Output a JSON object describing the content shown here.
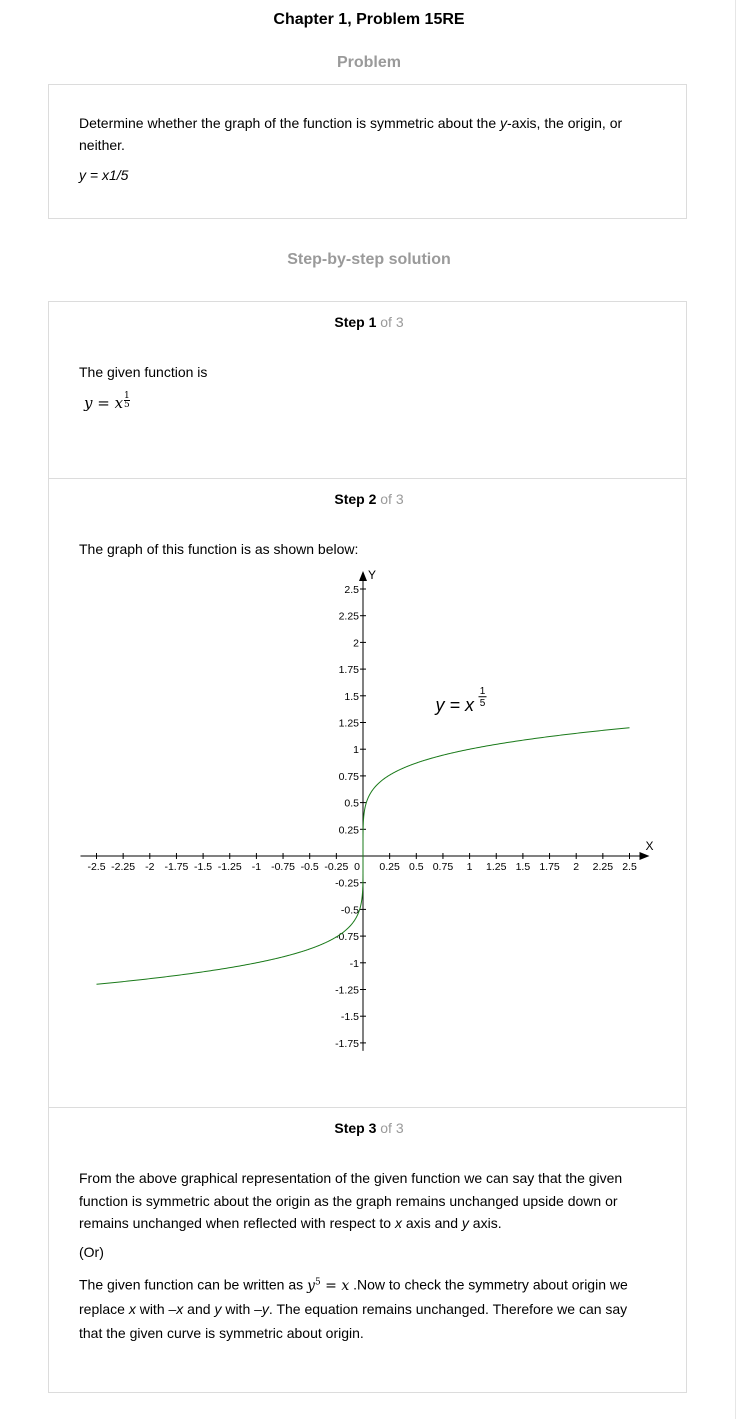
{
  "title": "Chapter 1, Problem 15RE",
  "problem_heading": "Problem",
  "problem": {
    "text_before_y": "Determine whether the graph of the function is symmetric about the ",
    "y_italic": "y",
    "text_after_y": "-axis, the origin, or neither.",
    "equation": "y = x1/5"
  },
  "solution_heading": "Step-by-step solution",
  "steps": [
    {
      "label": "Step 1",
      "of": "of 3"
    },
    {
      "label": "Step 2",
      "of": "of 3"
    },
    {
      "label": "Step 3",
      "of": "of 3"
    }
  ],
  "step1": {
    "text": "The given function is",
    "eq_lhs": "y = x",
    "exp_num": "1",
    "exp_den": "5"
  },
  "step2": {
    "text": "The graph of this function is as shown below:"
  },
  "step3": {
    "p1_a": "From the above graphical representation of the given function we can say that the given function is symmetric about the origin as the graph remains unchanged upside down or remains unchanged when reflected with respect to ",
    "p1_x": "x",
    "p1_b": " axis and ",
    "p1_y": "y",
    "p1_c": " axis.",
    "or": "(Or)",
    "p2_a": "The given function can be written as ",
    "p2_eq_base": "y",
    "p2_eq_exp": "5",
    "p2_eq_rest": " = x",
    "p2_b": " .Now to check the symmetry about origin we replace ",
    "p2_x1": "x",
    "p2_c": " with ",
    "p2_x2": "–x",
    "p2_d": " and ",
    "p2_y1": "y",
    "p2_e": " with ",
    "p2_y2": "–y",
    "p2_f": ". The equation remains unchanged. Therefore we can say that the given curve is symmetric about origin."
  },
  "chart_data": {
    "type": "line",
    "xlabel": "X",
    "ylabel": "Y",
    "xlim": [
      -2.5,
      2.5
    ],
    "ylim": [
      -1.75,
      2.5
    ],
    "x_ticks": [
      "-2.5",
      "-2.25",
      "-2",
      "-1.75",
      "-1.5",
      "-1.25",
      "-1",
      "-0.75",
      "-0.5",
      "-0.25",
      "0",
      "0.25",
      "0.5",
      "0.75",
      "1",
      "1.25",
      "1.5",
      "1.75",
      "2",
      "2.25",
      "2.5"
    ],
    "y_ticks": [
      "2.5",
      "2.25",
      "2",
      "1.75",
      "1.5",
      "1.25",
      "1",
      "0.75",
      "0.5",
      "0.25",
      "-0.25",
      "-0.5",
      "-0.75",
      "-1",
      "-1.25",
      "-1.5",
      "-1.75"
    ],
    "x_tick_values": [
      -2.5,
      -2.25,
      -2,
      -1.75,
      -1.5,
      -1.25,
      -1,
      -0.75,
      -0.5,
      -0.25,
      0,
      0.25,
      0.5,
      0.75,
      1,
      1.25,
      1.5,
      1.75,
      2,
      2.25,
      2.5
    ],
    "y_tick_values": [
      2.5,
      2.25,
      2,
      1.75,
      1.5,
      1.25,
      1,
      0.75,
      0.5,
      0.25,
      -0.25,
      -0.5,
      -0.75,
      -1,
      -1.25,
      -1.5,
      -1.75
    ],
    "series": [
      {
        "function": "x^(1/5)",
        "x_range": [
          -2.5,
          2.5
        ],
        "color": "#1a7a1a",
        "sample_points": [
          [
            -2.5,
            -1.201
          ],
          [
            -2,
            -1.149
          ],
          [
            -1,
            -1
          ],
          [
            -0.5,
            -0.871
          ],
          [
            -0.1,
            -0.631
          ],
          [
            0,
            0
          ],
          [
            0.1,
            0.631
          ],
          [
            0.5,
            0.871
          ],
          [
            1,
            1
          ],
          [
            2,
            1.149
          ],
          [
            2.5,
            1.201
          ]
        ]
      }
    ],
    "annotation": {
      "lhs": "y = x",
      "exp_num": "1",
      "exp_den": "5"
    },
    "grid": false
  }
}
